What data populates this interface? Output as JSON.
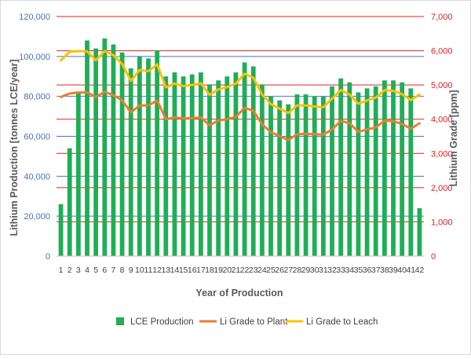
{
  "chart_data": {
    "type": "bar",
    "xlabel": "Year of Production",
    "ylabel_left": "Lithium Production [tonnes LCE/year]",
    "ylabel_right": "Lithium Grade [ppm]",
    "ylim_left": [
      0,
      120000
    ],
    "ylim_right": [
      0,
      7000
    ],
    "left_ticks": [
      "0",
      "20,000",
      "40,000",
      "60,000",
      "80,000",
      "100,000",
      "120,000"
    ],
    "right_ticks": [
      "0",
      "1,000",
      "2,000",
      "3,000",
      "4,000",
      "5,000",
      "6,000",
      "7,000"
    ],
    "x": [
      "1",
      "2",
      "3",
      "4",
      "5",
      "6",
      "7",
      "8",
      "9",
      "10",
      "11",
      "12",
      "13",
      "14",
      "15",
      "16",
      "17",
      "18",
      "19",
      "20",
      "21",
      "22",
      "23",
      "24",
      "25",
      "26",
      "27",
      "28",
      "29",
      "30",
      "31",
      "32",
      "33",
      "34",
      "35",
      "36",
      "37",
      "38",
      "39",
      "40",
      "41",
      "42"
    ],
    "grid": true,
    "legend_position": "bottom",
    "colors": {
      "bars": "#1fae55",
      "plant": "#ed7d31",
      "leach": "#ffc000",
      "left_axis": "#4472c4",
      "right_axis": "#e02020",
      "grid_blue": "#4472c4",
      "grid_red": "#e02020"
    },
    "series": [
      {
        "name": "LCE Production",
        "axis": "left",
        "kind": "bar",
        "values": [
          26000,
          54000,
          82000,
          108000,
          104000,
          109000,
          106000,
          102000,
          94000,
          100000,
          99000,
          103000,
          90000,
          92000,
          90000,
          91000,
          92000,
          86000,
          88000,
          90000,
          92000,
          97000,
          95000,
          86000,
          80000,
          78000,
          76000,
          81000,
          81000,
          80000,
          80000,
          85000,
          89000,
          87000,
          82000,
          84000,
          85000,
          88000,
          88000,
          87000,
          84000,
          24000
        ]
      },
      {
        "name": "Li Grade to Plant",
        "axis": "right",
        "kind": "line",
        "values": [
          4650,
          4750,
          4780,
          4780,
          4650,
          4800,
          4700,
          4550,
          4200,
          4400,
          4400,
          4550,
          4000,
          4050,
          4020,
          4030,
          4050,
          3820,
          3960,
          4000,
          4070,
          4330,
          4250,
          3850,
          3620,
          3510,
          3390,
          3560,
          3570,
          3560,
          3550,
          3700,
          3950,
          3880,
          3630,
          3700,
          3760,
          3960,
          3940,
          3860,
          3720,
          3880
        ]
      },
      {
        "name": "Li Grade to Leach",
        "axis": "right",
        "kind": "line",
        "values": [
          5720,
          5970,
          5990,
          5980,
          5720,
          5990,
          5870,
          5610,
          5120,
          5440,
          5400,
          5600,
          4930,
          5040,
          4970,
          5000,
          5050,
          4710,
          4870,
          4940,
          5040,
          5330,
          5210,
          4720,
          4440,
          4310,
          4180,
          4400,
          4400,
          4370,
          4350,
          4600,
          4850,
          4720,
          4450,
          4550,
          4630,
          4850,
          4830,
          4730,
          4560,
          4720
        ]
      }
    ]
  }
}
